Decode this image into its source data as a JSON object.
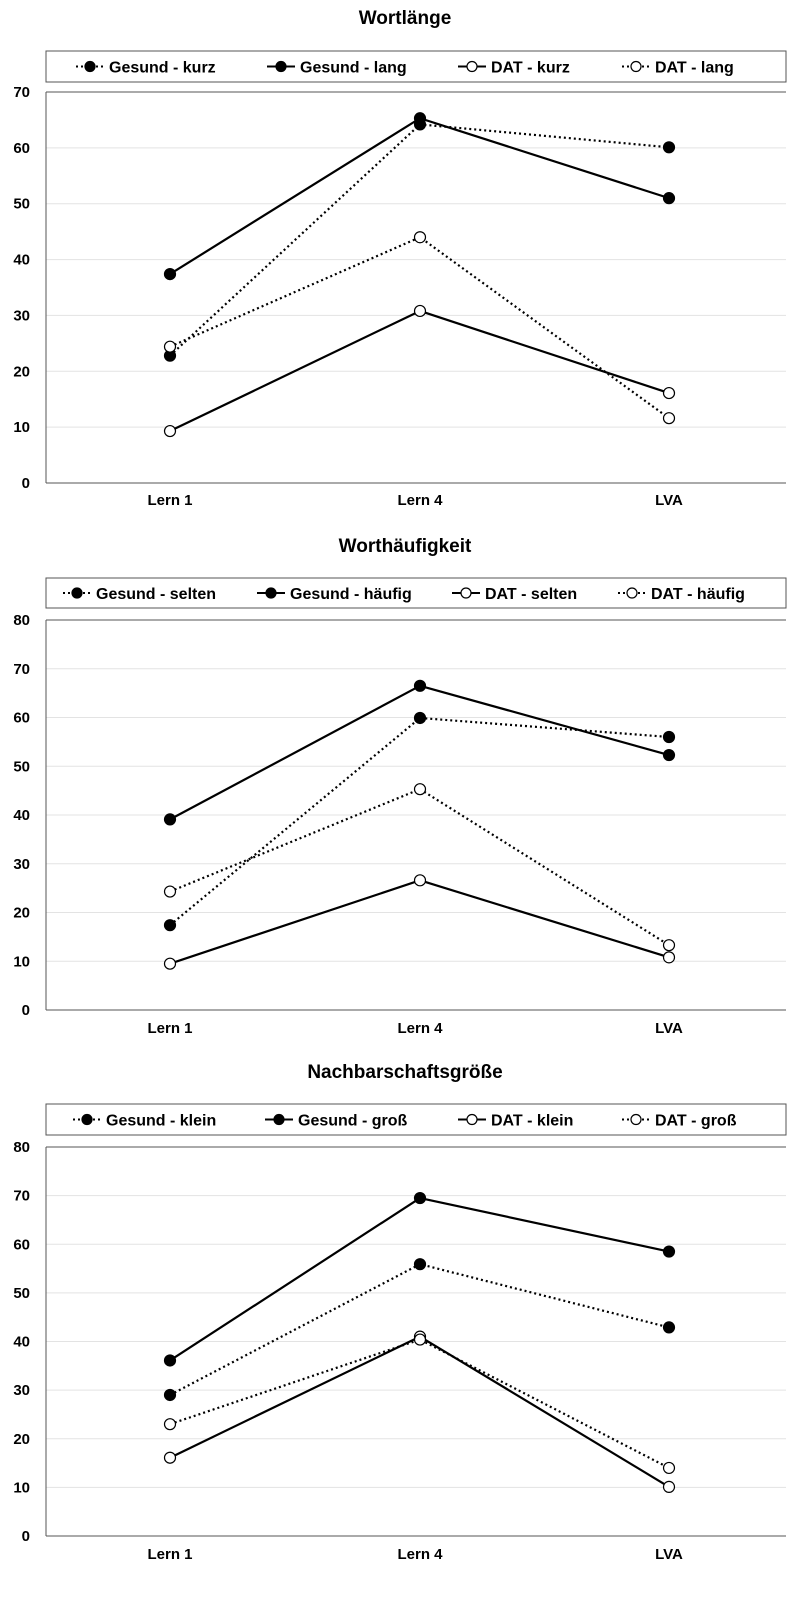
{
  "charts": [
    {
      "type": "line",
      "title": "Wortlänge",
      "categories": [
        "Lern 1",
        "Lern 4",
        "LVA"
      ],
      "ylim": [
        0,
        70
      ],
      "yticks": [
        0,
        10,
        20,
        30,
        40,
        50,
        60,
        70
      ],
      "grid": true,
      "legend_position": "top",
      "series": [
        {
          "name": "Gesund - kurz",
          "values": [
            22.8,
            64.2,
            60.1
          ],
          "filled": true,
          "dotted": true
        },
        {
          "name": "Gesund - lang",
          "values": [
            37.4,
            65.3,
            51.0
          ],
          "filled": true,
          "dotted": false
        },
        {
          "name": "DAT - kurz",
          "values": [
            9.3,
            30.8,
            16.1
          ],
          "filled": false,
          "dotted": false
        },
        {
          "name": "DAT - lang",
          "values": [
            24.4,
            44.0,
            11.6
          ],
          "filled": false,
          "dotted": true
        }
      ]
    },
    {
      "type": "line",
      "title": "Worthäufigkeit",
      "categories": [
        "Lern 1",
        "Lern 4",
        "LVA"
      ],
      "ylim": [
        0,
        80
      ],
      "yticks": [
        0,
        10,
        20,
        30,
        40,
        50,
        60,
        70,
        80
      ],
      "grid": true,
      "legend_position": "top",
      "series": [
        {
          "name": "Gesund - selten",
          "values": [
            17.4,
            59.9,
            56.0
          ],
          "filled": true,
          "dotted": true
        },
        {
          "name": "Gesund - häufig",
          "values": [
            39.1,
            66.5,
            52.3
          ],
          "filled": true,
          "dotted": false
        },
        {
          "name": "DAT - selten",
          "values": [
            9.5,
            26.6,
            10.8
          ],
          "filled": false,
          "dotted": false
        },
        {
          "name": "DAT - häufig",
          "values": [
            24.3,
            45.3,
            13.3
          ],
          "filled": false,
          "dotted": true
        }
      ]
    },
    {
      "type": "line",
      "title": "Nachbarschaftsgröße",
      "categories": [
        "Lern 1",
        "Lern 4",
        "LVA"
      ],
      "ylim": [
        0,
        80
      ],
      "yticks": [
        0,
        10,
        20,
        30,
        40,
        50,
        60,
        70,
        80
      ],
      "grid": true,
      "legend_position": "top",
      "series": [
        {
          "name": "Gesund - klein",
          "values": [
            29.0,
            55.9,
            42.9
          ],
          "filled": true,
          "dotted": true
        },
        {
          "name": "Gesund - groß",
          "values": [
            36.1,
            69.5,
            58.5
          ],
          "filled": true,
          "dotted": false
        },
        {
          "name": "DAT - klein",
          "values": [
            16.1,
            41.0,
            10.1
          ],
          "filled": false,
          "dotted": false
        },
        {
          "name": "DAT - groß",
          "values": [
            23.0,
            40.4,
            14.0
          ],
          "filled": false,
          "dotted": true
        }
      ]
    }
  ],
  "chart_data": [
    {
      "type": "line",
      "title": "Wortlänge",
      "categories": [
        "Lern 1",
        "Lern 4",
        "LVA"
      ],
      "ylim": [
        0,
        70
      ],
      "series": [
        {
          "name": "Gesund - kurz",
          "values": [
            22.8,
            64.2,
            60.1
          ]
        },
        {
          "name": "Gesund - lang",
          "values": [
            37.4,
            65.3,
            51.0
          ]
        },
        {
          "name": "DAT - kurz",
          "values": [
            9.3,
            30.8,
            16.1
          ]
        },
        {
          "name": "DAT - lang",
          "values": [
            24.4,
            44.0,
            11.6
          ]
        }
      ]
    },
    {
      "type": "line",
      "title": "Worthäufigkeit",
      "categories": [
        "Lern 1",
        "Lern 4",
        "LVA"
      ],
      "ylim": [
        0,
        80
      ],
      "series": [
        {
          "name": "Gesund - selten",
          "values": [
            17.4,
            59.9,
            56.0
          ]
        },
        {
          "name": "Gesund - häufig",
          "values": [
            39.1,
            66.5,
            52.3
          ]
        },
        {
          "name": "DAT - selten",
          "values": [
            9.5,
            26.6,
            10.8
          ]
        },
        {
          "name": "DAT - häufig",
          "values": [
            24.3,
            45.3,
            13.3
          ]
        }
      ]
    },
    {
      "type": "line",
      "title": "Nachbarschaftsgröße",
      "categories": [
        "Lern 1",
        "Lern 4",
        "LVA"
      ],
      "ylim": [
        0,
        80
      ],
      "series": [
        {
          "name": "Gesund - klein",
          "values": [
            29.0,
            55.9,
            42.9
          ]
        },
        {
          "name": "Gesund - groß",
          "values": [
            36.1,
            69.5,
            58.5
          ]
        },
        {
          "name": "DAT - klein",
          "values": [
            16.1,
            41.0,
            10.1
          ]
        },
        {
          "name": "DAT - groß",
          "values": [
            23.0,
            40.4,
            14.0
          ]
        }
      ]
    }
  ]
}
